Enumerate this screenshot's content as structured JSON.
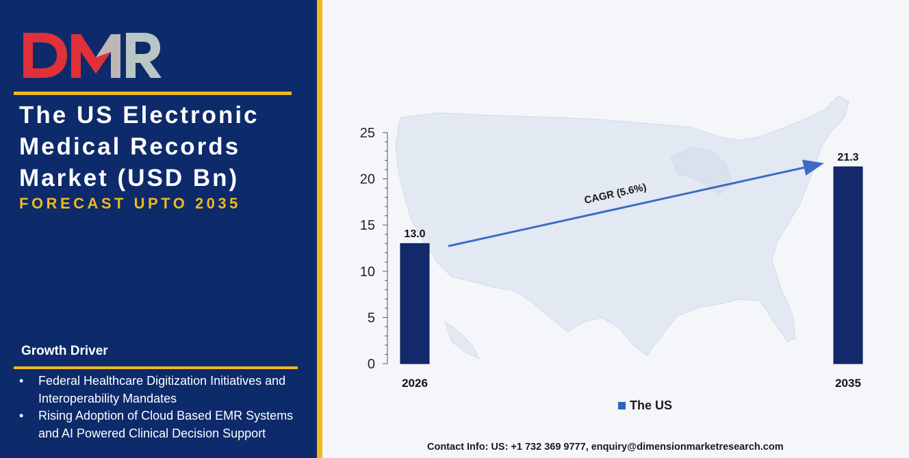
{
  "brand": {
    "logo_text": "DMR",
    "colors": {
      "navy": "#0d2a6b",
      "accent": "#f2b81c",
      "logo_red": "#e0303a",
      "logo_grey": "#b9c7c4"
    }
  },
  "header": {
    "title": "The US Electronic Medical Records Market (USD Bn)",
    "subtitle": "FORECAST UPTO 2035"
  },
  "drivers": {
    "heading": "Growth Driver",
    "items": [
      {
        "bullet": "•",
        "text": "Federal Healthcare Digitization Initiatives and Interoperability Mandates"
      },
      {
        "bullet": "•",
        "text": "Rising Adoption of Cloud Based EMR Systems and AI Powered Clinical Decision Support"
      }
    ]
  },
  "chart_data": {
    "type": "bar",
    "categories": [
      "2026",
      "2035"
    ],
    "series": [
      {
        "name": "The US",
        "values": [
          13.0,
          21.3
        ],
        "color": "#13296b"
      }
    ],
    "data_labels": [
      "13.0",
      "21.3"
    ],
    "ylim": [
      0,
      25
    ],
    "y_ticks": [
      0,
      5,
      10,
      15,
      20,
      25
    ],
    "annotation": "CAGR (5.6%)",
    "legend_position": "bottom",
    "background_map": "united-states-map"
  },
  "footer": {
    "contact": "Contact Info: US: +1 732 369 9777, enquiry@dimensionmarketresearch.com"
  }
}
